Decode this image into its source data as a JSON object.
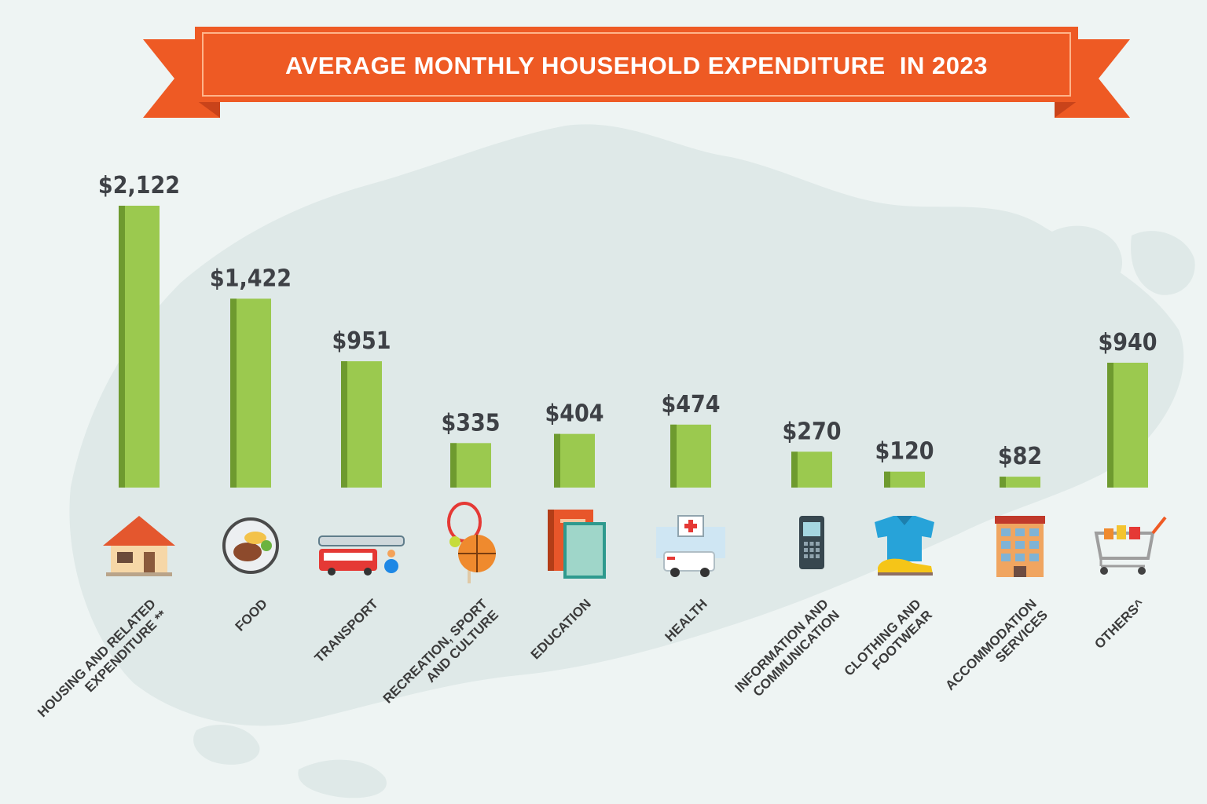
{
  "chart_data": {
    "type": "bar",
    "title": "AVERAGE MONTHLY HOUSEHOLD EXPENDITURE  IN 2023",
    "categories": [
      [
        "HOUSING AND RELATED",
        "EXPENDITURE **"
      ],
      [
        "FOOD"
      ],
      [
        "TRANSPORT"
      ],
      [
        "RECREATION, SPORT",
        "AND CULTURE"
      ],
      [
        "EDUCATION"
      ],
      [
        "HEALTH"
      ],
      [
        "INFORMATION AND",
        "COMMUNICATION"
      ],
      [
        "CLOTHING AND",
        "FOOTWEAR"
      ],
      [
        "ACCOMMODATION",
        "SERVICES"
      ],
      [
        "OTHERS^"
      ]
    ],
    "values": [
      2122,
      1422,
      951,
      335,
      404,
      474,
      270,
      120,
      82,
      940
    ],
    "value_labels": [
      "$2,122",
      "$1,422",
      "$951",
      "$335",
      "$404",
      "$474",
      "$270",
      "$120",
      "$82",
      "$940"
    ],
    "icons": [
      "house-icon",
      "food-plate-icon",
      "bus-train-icon",
      "sports-balls-icon",
      "books-icon",
      "hospital-ambulance-icon",
      "mobile-phone-icon",
      "shirt-shoe-icon",
      "hotel-icon",
      "shopping-cart-icon"
    ],
    "xlabel": "",
    "ylabel": "",
    "grid": false,
    "legend": "none"
  },
  "colors": {
    "bar": "#9bc94f",
    "bar_edge": "#6e9a2f",
    "banner": "#ee5a24",
    "banner_dark": "#c9431a",
    "value_text": "#3e4146",
    "background": "#eef4f3",
    "map": "#dfe9e8"
  }
}
